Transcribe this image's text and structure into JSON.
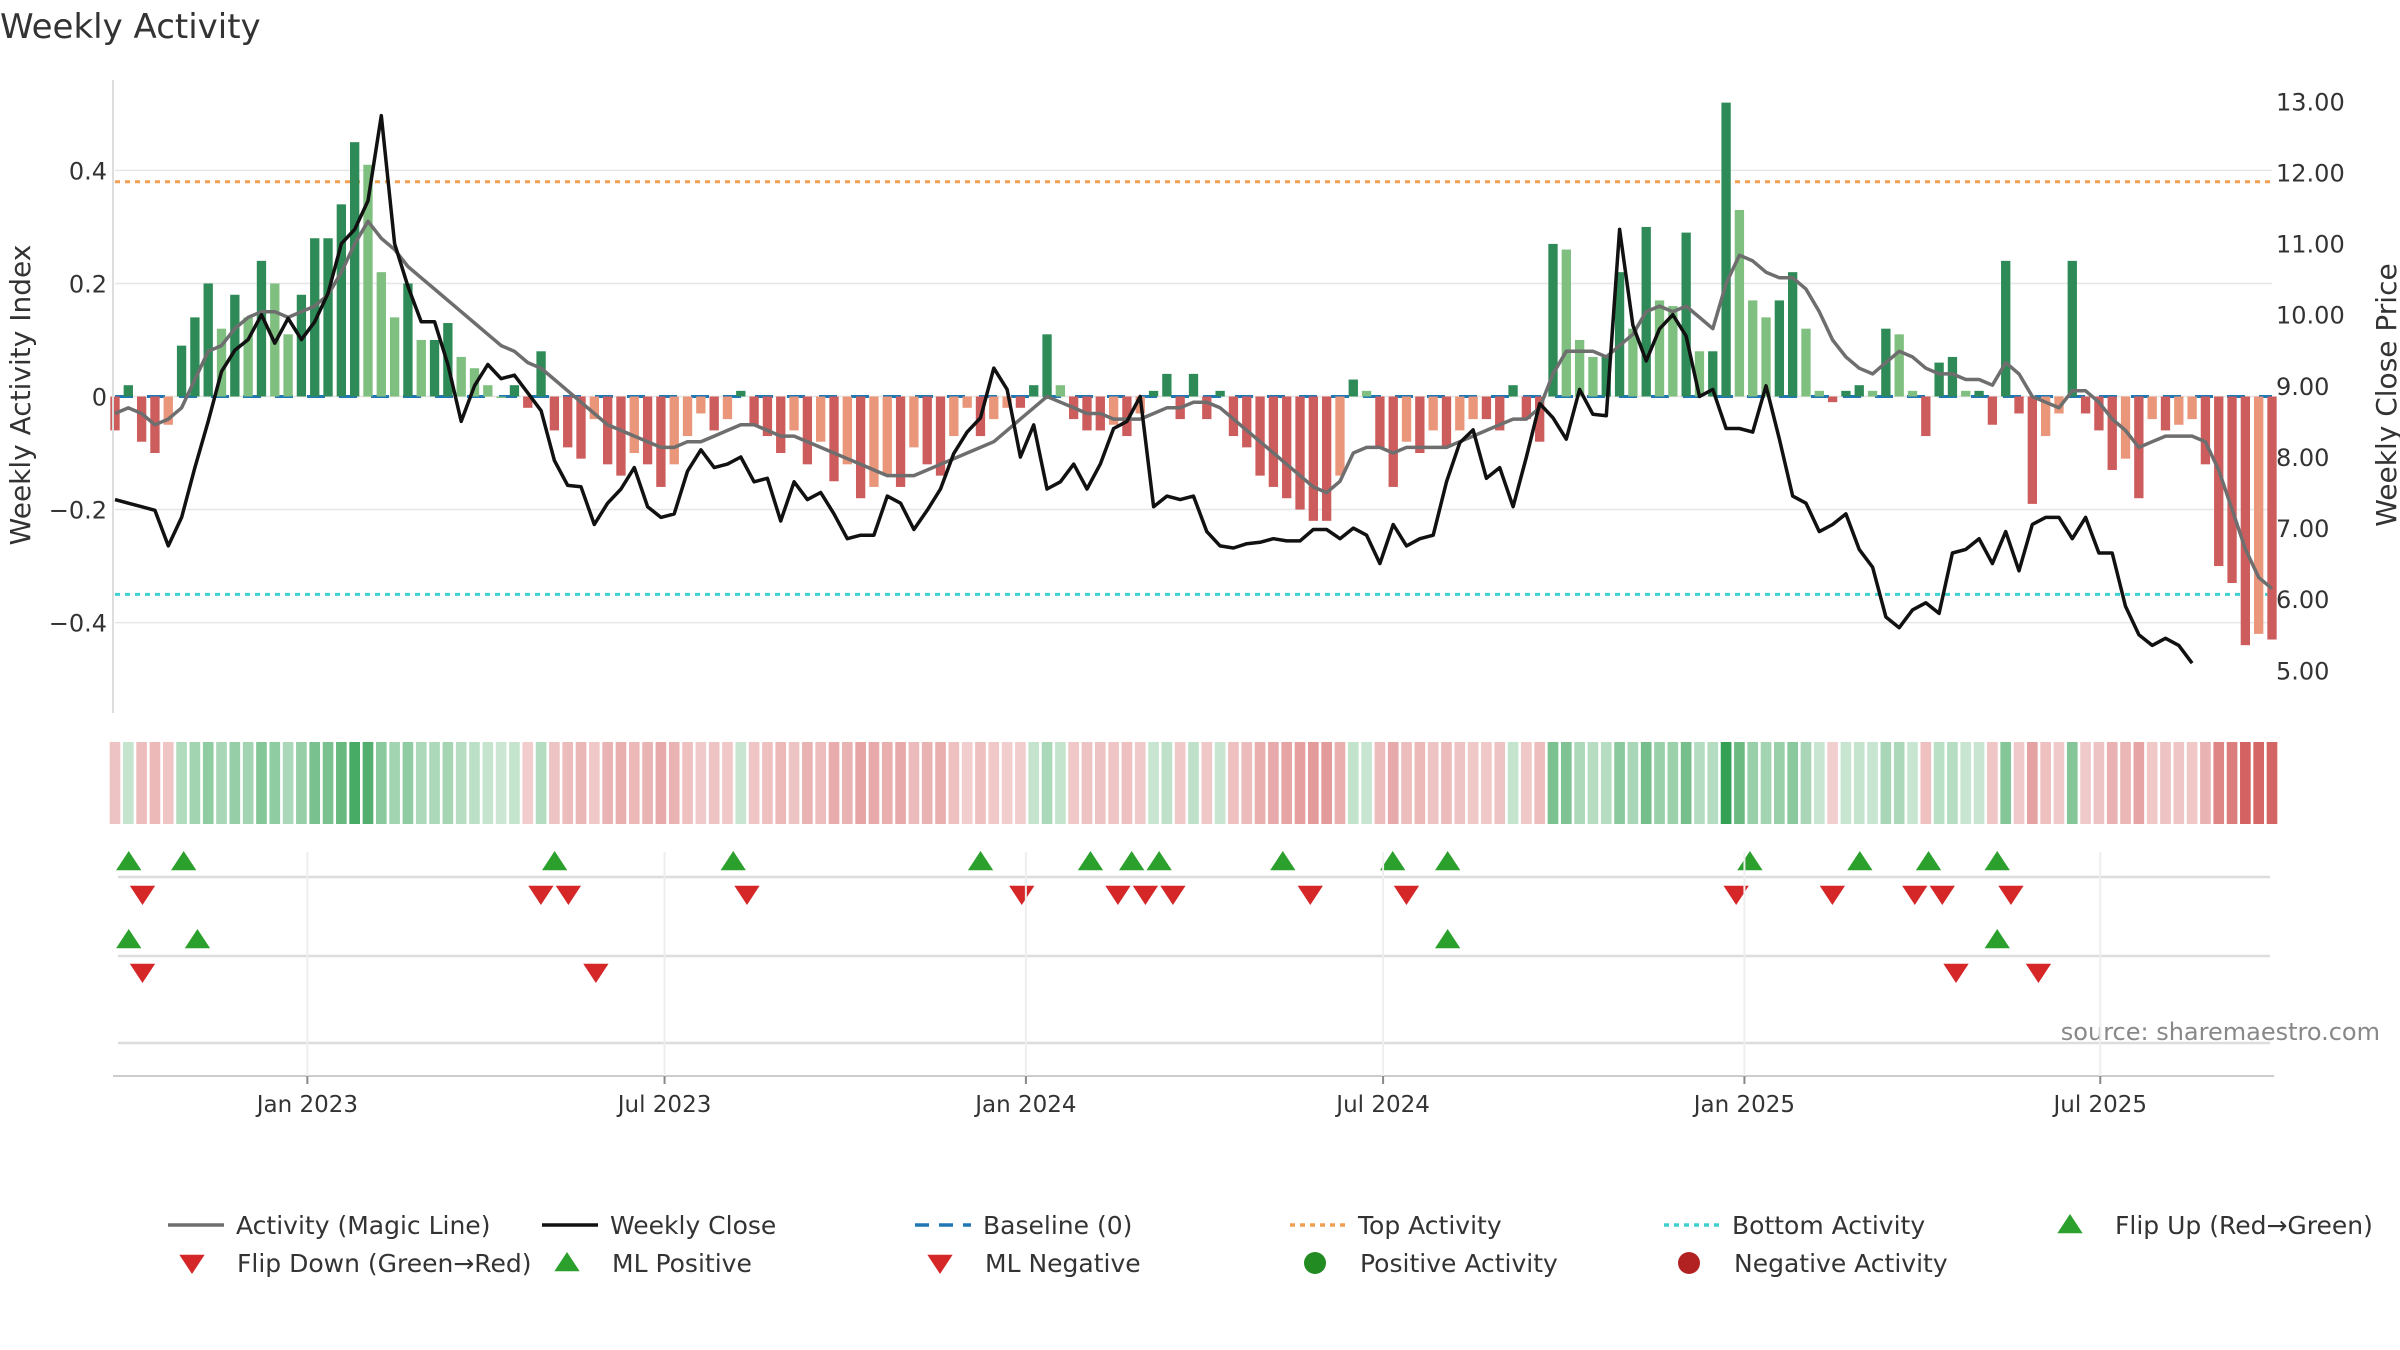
{
  "colors": {
    "pos_strong": "#2e8b57",
    "pos_light": "#7fbf7f",
    "neg_strong": "#cd5c5c",
    "neg_light": "#e9967a",
    "magic_line": "#6e6e6e",
    "close_line": "#111111",
    "baseline": "#1f77b4",
    "top_line": "#f0a050",
    "bottom_line": "#40d0d0",
    "flip_up": "#2ca02c",
    "flip_down": "#d62728",
    "ml_pos": "#229944",
    "ml_neg": "#cc2222",
    "dot_pos": "#228B22",
    "dot_neg": "#B22222",
    "grid": "#e6e6e6"
  },
  "chart_data": {
    "type": "bar+line",
    "title": "Weekly Activity",
    "ylabel": "Weekly Activity Index",
    "y2label": "Weekly Close Price",
    "ylim": [
      -0.56,
      0.56
    ],
    "y2lim": [
      4.4,
      13.3
    ],
    "yticks": [
      0.4,
      0.2,
      0,
      -0.2,
      -0.4
    ],
    "ytick_labels": [
      "0.4",
      "0.2",
      "0",
      "−0.2",
      "−0.4"
    ],
    "y2ticks": [
      13,
      12,
      11,
      10,
      9,
      8,
      7,
      6,
      5
    ],
    "y2tick_labels": [
      "13.00",
      "12.00",
      "11.00",
      "10.00",
      "9.00",
      "8.00",
      "7.00",
      "6.00",
      "5.00"
    ],
    "x_start_week": -14,
    "x_end_week": 143,
    "xticks": [
      {
        "label": "Jan 2023",
        "week": 0
      },
      {
        "label": "Jul 2023",
        "week": 26
      },
      {
        "label": "Jan 2024",
        "week": 52.3
      },
      {
        "label": "Jul 2024",
        "week": 78.3
      },
      {
        "label": "Jan 2025",
        "week": 104.6
      },
      {
        "label": "Jul 2025",
        "week": 130.5
      }
    ],
    "top_activity": 0.38,
    "bottom_activity": -0.35,
    "activity": [
      -0.06,
      0.02,
      -0.08,
      -0.1,
      -0.05,
      0.09,
      0.14,
      0.2,
      0.12,
      0.18,
      0.14,
      0.24,
      0.2,
      0.11,
      0.18,
      0.28,
      0.28,
      0.34,
      0.45,
      0.41,
      0.22,
      0.14,
      0.2,
      0.1,
      0.1,
      0.13,
      0.07,
      0.05,
      0.02,
      0.0,
      0.02,
      -0.02,
      0.08,
      -0.06,
      -0.09,
      -0.11,
      -0.04,
      -0.12,
      -0.14,
      -0.1,
      -0.12,
      -0.16,
      -0.12,
      -0.07,
      -0.03,
      -0.06,
      -0.04,
      0.01,
      -0.05,
      -0.07,
      -0.1,
      -0.06,
      -0.12,
      -0.08,
      -0.15,
      -0.12,
      -0.18,
      -0.16,
      -0.14,
      -0.16,
      -0.09,
      -0.12,
      -0.14,
      -0.07,
      -0.02,
      -0.07,
      -0.04,
      -0.02,
      -0.02,
      0.02,
      0.11,
      0.02,
      -0.04,
      -0.06,
      -0.06,
      -0.05,
      -0.07,
      -0.03,
      0.01,
      0.04,
      -0.04,
      0.04,
      -0.04,
      0.01,
      -0.07,
      -0.09,
      -0.14,
      -0.16,
      -0.18,
      -0.2,
      -0.22,
      -0.22,
      -0.14,
      0.03,
      0.01,
      -0.09,
      -0.16,
      -0.08,
      -0.1,
      -0.06,
      -0.09,
      -0.06,
      -0.04,
      -0.04,
      -0.06,
      0.02,
      -0.04,
      -0.08,
      0.27,
      0.26,
      0.1,
      0.07,
      0.07,
      0.22,
      0.12,
      0.3,
      0.17,
      0.16,
      0.29,
      0.08,
      0.08,
      0.52,
      0.33,
      0.17,
      0.14,
      0.17,
      0.22,
      0.12,
      0.01,
      -0.01,
      0.01,
      0.02,
      0.01,
      0.12,
      0.11,
      0.01,
      -0.07,
      0.06,
      0.07,
      0.01,
      0.01,
      -0.05,
      0.24,
      -0.03,
      -0.19,
      -0.07,
      -0.03,
      0.24,
      -0.03,
      -0.06,
      -0.13,
      -0.11,
      -0.18,
      -0.04,
      -0.06,
      -0.05,
      -0.04,
      -0.12,
      -0.3,
      -0.33,
      -0.44,
      -0.42,
      -0.43
    ],
    "magic_line": [
      -0.03,
      -0.02,
      -0.03,
      -0.05,
      -0.04,
      -0.02,
      0.03,
      0.08,
      0.09,
      0.12,
      0.14,
      0.15,
      0.15,
      0.14,
      0.15,
      0.16,
      0.18,
      0.22,
      0.27,
      0.31,
      0.28,
      0.26,
      0.23,
      0.21,
      0.19,
      0.17,
      0.15,
      0.13,
      0.11,
      0.09,
      0.08,
      0.06,
      0.05,
      0.03,
      0.01,
      -0.01,
      -0.03,
      -0.05,
      -0.06,
      -0.07,
      -0.08,
      -0.09,
      -0.09,
      -0.08,
      -0.08,
      -0.07,
      -0.06,
      -0.05,
      -0.05,
      -0.06,
      -0.07,
      -0.07,
      -0.08,
      -0.09,
      -0.1,
      -0.11,
      -0.12,
      -0.13,
      -0.14,
      -0.14,
      -0.14,
      -0.13,
      -0.12,
      -0.11,
      -0.1,
      -0.09,
      -0.08,
      -0.06,
      -0.04,
      -0.02,
      0.0,
      -0.01,
      -0.02,
      -0.03,
      -0.03,
      -0.04,
      -0.04,
      -0.04,
      -0.03,
      -0.02,
      -0.02,
      -0.01,
      -0.01,
      -0.02,
      -0.04,
      -0.06,
      -0.08,
      -0.1,
      -0.12,
      -0.14,
      -0.16,
      -0.17,
      -0.15,
      -0.1,
      -0.09,
      -0.09,
      -0.1,
      -0.09,
      -0.09,
      -0.09,
      -0.09,
      -0.08,
      -0.07,
      -0.06,
      -0.05,
      -0.04,
      -0.04,
      -0.02,
      0.04,
      0.08,
      0.08,
      0.08,
      0.07,
      0.09,
      0.11,
      0.15,
      0.16,
      0.15,
      0.16,
      0.14,
      0.12,
      0.2,
      0.25,
      0.24,
      0.22,
      0.21,
      0.21,
      0.19,
      0.15,
      0.1,
      0.07,
      0.05,
      0.04,
      0.06,
      0.08,
      0.07,
      0.05,
      0.04,
      0.04,
      0.03,
      0.03,
      0.02,
      0.06,
      0.04,
      0.0,
      -0.01,
      -0.02,
      0.01,
      0.01,
      -0.01,
      -0.04,
      -0.06,
      -0.09,
      -0.08,
      -0.07,
      -0.07,
      -0.07,
      -0.08,
      -0.13,
      -0.2,
      -0.27,
      -0.32,
      -0.34
    ],
    "weekly_close": [
      7.4,
      7.35,
      7.3,
      7.25,
      6.75,
      7.15,
      7.85,
      8.5,
      9.2,
      9.5,
      9.65,
      10.0,
      9.6,
      9.95,
      9.65,
      9.9,
      10.3,
      11.0,
      11.2,
      11.6,
      12.8,
      11.0,
      10.4,
      9.9,
      9.9,
      9.3,
      8.5,
      9.0,
      9.3,
      9.1,
      9.15,
      8.9,
      8.65,
      7.95,
      7.6,
      7.58,
      7.05,
      7.35,
      7.55,
      7.85,
      7.3,
      7.15,
      7.2,
      7.8,
      8.1,
      7.85,
      7.9,
      8.0,
      7.65,
      7.7,
      7.1,
      7.65,
      7.4,
      7.5,
      7.2,
      6.85,
      6.9,
      6.9,
      7.45,
      7.35,
      6.98,
      7.25,
      7.55,
      8.05,
      8.35,
      8.55,
      9.25,
      8.95,
      8.0,
      8.45,
      7.55,
      7.65,
      7.9,
      7.55,
      7.9,
      8.4,
      8.5,
      8.85,
      7.3,
      7.45,
      7.4,
      7.45,
      6.95,
      6.75,
      6.72,
      6.78,
      6.8,
      6.85,
      6.82,
      6.82,
      6.98,
      6.98,
      6.85,
      7.0,
      6.9,
      6.5,
      7.05,
      6.75,
      6.85,
      6.9,
      7.65,
      8.2,
      8.38,
      7.7,
      7.85,
      7.3,
      8.0,
      8.75,
      8.55,
      8.25,
      8.95,
      8.6,
      8.58,
      11.2,
      9.85,
      9.35,
      9.8,
      10.0,
      9.7,
      8.85,
      8.95,
      8.4,
      8.4,
      8.35,
      9.0,
      8.25,
      7.45,
      7.35,
      6.95,
      7.05,
      7.2,
      6.7,
      6.45,
      5.75,
      5.6,
      5.85,
      5.95,
      5.8,
      6.65,
      6.7,
      6.85,
      6.5,
      6.95,
      6.4,
      7.05,
      7.15,
      7.15,
      6.85,
      7.15,
      6.65,
      6.65,
      5.9,
      5.5,
      5.35,
      5.45,
      5.35,
      5.1
    ],
    "heat_strip": "heat-map row of weekly activity (same values as bars)",
    "flip_up_weeks": [
      -13,
      -9,
      18,
      31,
      49,
      57,
      60,
      62,
      71,
      79,
      83,
      105,
      113,
      118,
      123
    ],
    "flip_down_weeks": [
      -12,
      17,
      19,
      32,
      52,
      59,
      61,
      63,
      73,
      80,
      104,
      111,
      117,
      119,
      124
    ],
    "ml_positive_weeks": [
      -13,
      -8,
      83,
      123
    ],
    "ml_negative_weeks": [
      -12,
      21,
      120,
      126
    ],
    "source_note": "source: sharemaestro.com",
    "legend": [
      {
        "key": "magic",
        "label": "Activity (Magic Line)"
      },
      {
        "key": "close",
        "label": "Weekly Close"
      },
      {
        "key": "baseline",
        "label": "Baseline (0)"
      },
      {
        "key": "top",
        "label": "Top Activity"
      },
      {
        "key": "bottom",
        "label": "Bottom Activity"
      },
      {
        "key": "flipup",
        "label": "Flip Up (Red→Green)"
      },
      {
        "key": "flipdown",
        "label": "Flip Down (Green→Red)"
      },
      {
        "key": "mlpos",
        "label": "ML Positive"
      },
      {
        "key": "mlneg",
        "label": "ML Negative"
      },
      {
        "key": "dotpos",
        "label": "Positive Activity"
      },
      {
        "key": "dotneg",
        "label": "Negative Activity"
      }
    ]
  }
}
